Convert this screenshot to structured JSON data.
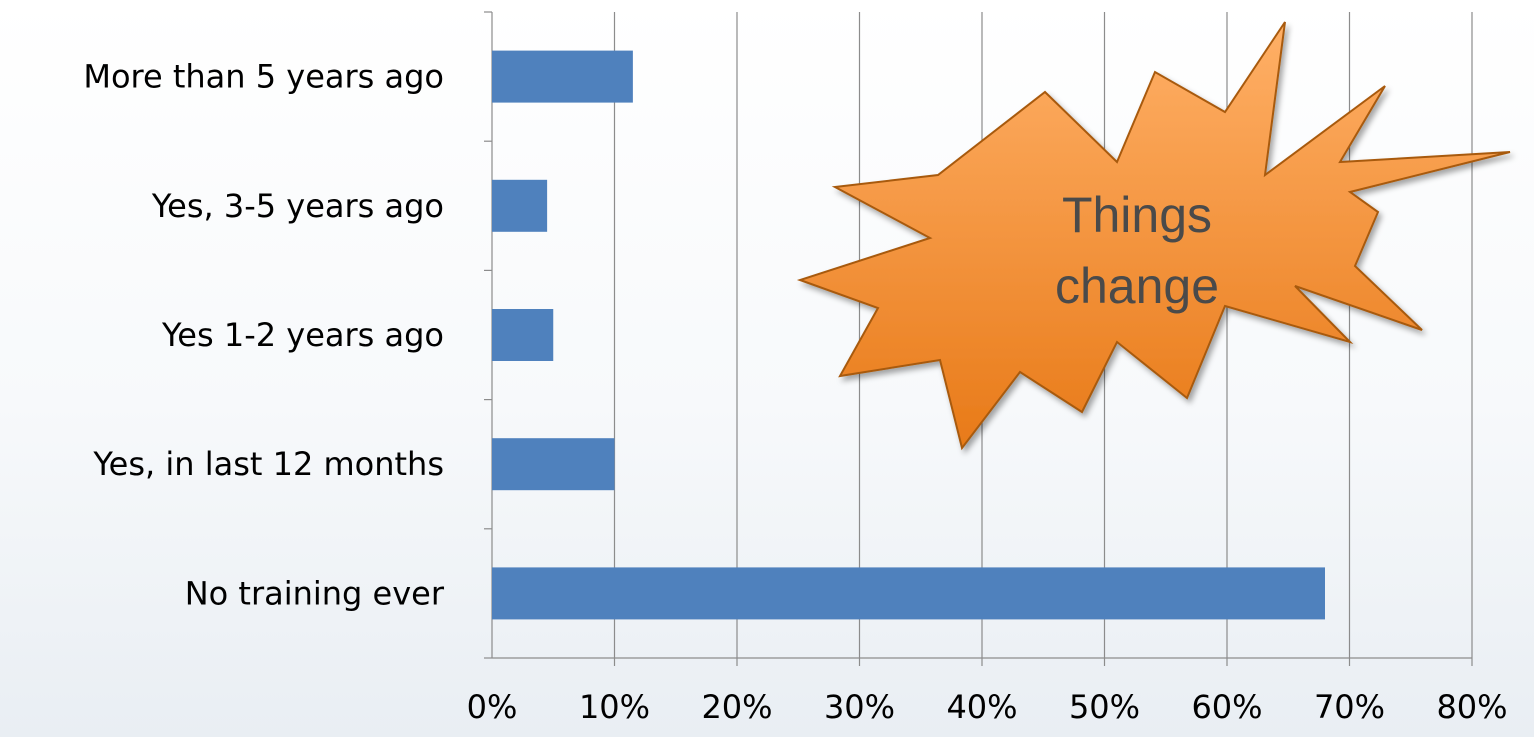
{
  "chart_data": {
    "type": "bar",
    "orientation": "horizontal",
    "categories": [
      "More than 5 years ago",
      "Yes, 3-5 years ago",
      "Yes 1-2 years ago",
      "Yes, in last 12 months",
      "No training ever"
    ],
    "values": [
      11.5,
      4.5,
      5,
      10,
      68
    ],
    "xlim": [
      0,
      80
    ],
    "xticks": [
      "0%",
      "10%",
      "20%",
      "30%",
      "40%",
      "50%",
      "60%",
      "70%",
      "80%"
    ],
    "grid": "vertical",
    "legend": "none",
    "annotations": [
      {
        "text_lines": [
          "Things",
          "change"
        ],
        "shape": "starburst"
      }
    ]
  },
  "colors": {
    "bar": "#4f81bd",
    "grid": "#8c8c8c",
    "callout_fill_top": "#ffb067",
    "callout_fill_bottom": "#e87a18",
    "callout_stroke": "#a85a10"
  }
}
